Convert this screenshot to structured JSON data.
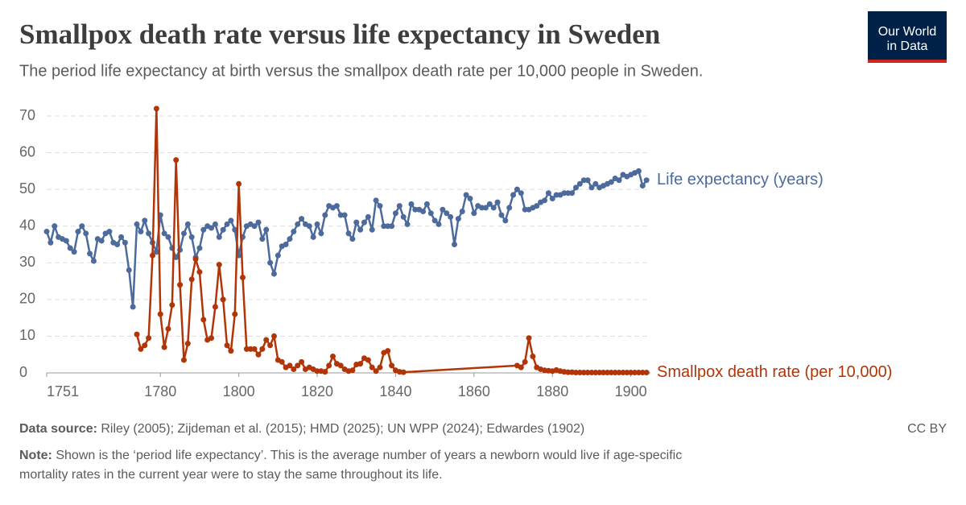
{
  "chart_data": {
    "type": "line",
    "title": "Smallpox death rate versus life expectancy in Sweden",
    "subtitle": "The period life expectancy at birth versus the smallpox death rate per 10,000 people in Sweden.",
    "xlim": [
      1751,
      1905
    ],
    "xticks": [
      1751,
      1780,
      1800,
      1820,
      1840,
      1860,
      1880,
      1900
    ],
    "ylim": [
      0,
      70
    ],
    "yticks": [
      0,
      10,
      20,
      30,
      40,
      50,
      60,
      70
    ],
    "grid": true,
    "series": [
      {
        "name": "Life expectancy (years)",
        "color": "#4c6a9c",
        "x": [
          1751,
          1752,
          1753,
          1754,
          1755,
          1756,
          1757,
          1758,
          1759,
          1760,
          1761,
          1762,
          1763,
          1764,
          1765,
          1766,
          1767,
          1768,
          1769,
          1770,
          1771,
          1772,
          1773,
          1774,
          1775,
          1776,
          1777,
          1778,
          1779,
          1780,
          1781,
          1782,
          1783,
          1784,
          1785,
          1786,
          1787,
          1788,
          1789,
          1790,
          1791,
          1792,
          1793,
          1794,
          1795,
          1796,
          1797,
          1798,
          1799,
          1800,
          1801,
          1802,
          1803,
          1804,
          1805,
          1806,
          1807,
          1808,
          1809,
          1810,
          1811,
          1812,
          1813,
          1814,
          1815,
          1816,
          1817,
          1818,
          1819,
          1820,
          1821,
          1822,
          1823,
          1824,
          1825,
          1826,
          1827,
          1828,
          1829,
          1830,
          1831,
          1832,
          1833,
          1834,
          1835,
          1836,
          1837,
          1838,
          1839,
          1840,
          1841,
          1842,
          1843,
          1844,
          1845,
          1846,
          1847,
          1848,
          1849,
          1850,
          1851,
          1852,
          1853,
          1854,
          1855,
          1856,
          1857,
          1858,
          1859,
          1860,
          1861,
          1862,
          1863,
          1864,
          1865,
          1866,
          1867,
          1868,
          1869,
          1870,
          1871,
          1872,
          1873,
          1874,
          1875,
          1876,
          1877,
          1878,
          1879,
          1880,
          1881,
          1882,
          1883,
          1884,
          1885,
          1886,
          1887,
          1888,
          1889,
          1890,
          1891,
          1892,
          1893,
          1894,
          1895,
          1896,
          1897,
          1898,
          1899,
          1900,
          1901,
          1902,
          1903,
          1904
        ],
        "values": [
          38.5,
          35.5,
          40,
          37,
          36.5,
          36,
          34,
          33,
          38.5,
          40,
          38,
          32.5,
          30.5,
          36.5,
          36,
          38,
          38.5,
          35.5,
          35,
          37,
          35.5,
          28,
          18,
          40.5,
          38.5,
          41.5,
          38,
          35.5,
          33,
          43,
          38,
          37,
          34,
          31.5,
          33.5,
          38,
          40.5,
          37,
          31.5,
          34,
          39,
          40,
          39.5,
          40.5,
          37,
          39,
          40.5,
          41.5,
          39,
          32,
          37,
          40,
          40.5,
          40,
          41,
          36.5,
          39,
          30,
          27,
          32,
          34.5,
          35,
          36.5,
          38.5,
          40.5,
          42,
          40.5,
          40,
          37,
          40.5,
          38,
          43,
          45.5,
          45,
          45.5,
          43,
          43,
          38,
          36.5,
          41,
          39,
          41,
          42.5,
          39,
          47,
          45.5,
          40,
          40,
          40,
          43.5,
          45.5,
          42.5,
          40.5,
          46,
          44.5,
          44.5,
          44,
          46,
          43.5,
          41.5,
          40.5,
          44.5,
          43.5,
          42.5,
          35,
          42,
          44,
          48.5,
          47.5,
          43.5,
          45.5,
          45,
          45,
          46,
          45,
          46.5,
          43,
          41.5,
          45,
          48.5,
          50,
          49,
          44.5,
          44.5,
          45,
          45.5,
          46.5,
          47,
          49,
          47.5,
          48.5,
          48.5,
          49,
          49,
          49,
          50.5,
          51.5,
          52.5,
          52.5,
          50.5,
          51.5,
          50.5,
          51,
          51.5,
          52,
          53,
          52.5,
          54,
          53.5,
          54,
          54.5,
          55,
          51,
          52.5
        ]
      },
      {
        "name": "Smallpox death rate (per 10,000)",
        "color": "#b13507",
        "x": [
          1774,
          1775,
          1776,
          1777,
          1778,
          1779,
          1780,
          1781,
          1782,
          1783,
          1784,
          1785,
          1786,
          1787,
          1788,
          1789,
          1790,
          1791,
          1792,
          1793,
          1794,
          1795,
          1796,
          1797,
          1798,
          1799,
          1800,
          1801,
          1802,
          1803,
          1804,
          1805,
          1806,
          1807,
          1808,
          1809,
          1810,
          1811,
          1812,
          1813,
          1814,
          1815,
          1816,
          1817,
          1818,
          1819,
          1820,
          1821,
          1822,
          1823,
          1824,
          1825,
          1826,
          1827,
          1828,
          1829,
          1830,
          1831,
          1832,
          1833,
          1834,
          1835,
          1836,
          1837,
          1838,
          1839,
          1840,
          1841,
          1842,
          1871,
          1872,
          1873,
          1874,
          1875,
          1876,
          1877,
          1878,
          1879,
          1880,
          1881,
          1882,
          1883,
          1884,
          1885,
          1886,
          1887,
          1888,
          1889,
          1890,
          1891,
          1892,
          1893,
          1894,
          1895,
          1896,
          1897,
          1898,
          1899,
          1900,
          1901,
          1902,
          1903,
          1904
        ],
        "values": [
          10.5,
          6.5,
          7.5,
          9.5,
          32,
          72,
          16,
          7,
          12,
          18.5,
          58,
          24,
          3.5,
          8,
          25.5,
          31,
          27.5,
          14.5,
          9,
          9.5,
          18,
          29.5,
          20,
          7.5,
          6,
          16,
          51.5,
          26,
          6.5,
          6.5,
          6.5,
          5,
          6.5,
          9,
          7.5,
          10,
          3.5,
          3,
          1.5,
          2,
          1,
          2,
          3,
          1,
          1.5,
          1,
          0.5,
          0.5,
          0.3,
          2,
          4.5,
          2.5,
          2,
          1,
          0.5,
          0.7,
          2.3,
          2.5,
          4,
          3.5,
          1.5,
          0.5,
          1.5,
          5.5,
          6,
          2,
          0.7,
          0.3,
          0.2,
          2,
          1.5,
          3,
          9.5,
          4.5,
          1.5,
          1,
          0.7,
          0.6,
          0.5,
          0.8,
          0.5,
          0.3,
          0.2,
          0.2,
          0.1,
          0.1,
          0.1,
          0.1,
          0.1,
          0.1,
          0.1,
          0.1,
          0.1,
          0.1,
          0.1,
          0.1,
          0.1,
          0.1,
          0.1,
          0.1,
          0.1,
          0.1,
          0.1
        ]
      }
    ],
    "source_label": "Data source:",
    "source": "Riley (2005); Zijdeman et al. (2015); HMD (2025); UN WPP (2024); Edwardes (1902)",
    "license": "CC BY",
    "note_label": "Note:",
    "note_lines": [
      "Shown is the ‘period life expectancy’. This is the average number of years a newborn would live if age-specific",
      "mortality rates in the current year were to stay the same throughout its life."
    ],
    "logo_lines": [
      "Our World",
      "in Data"
    ]
  }
}
